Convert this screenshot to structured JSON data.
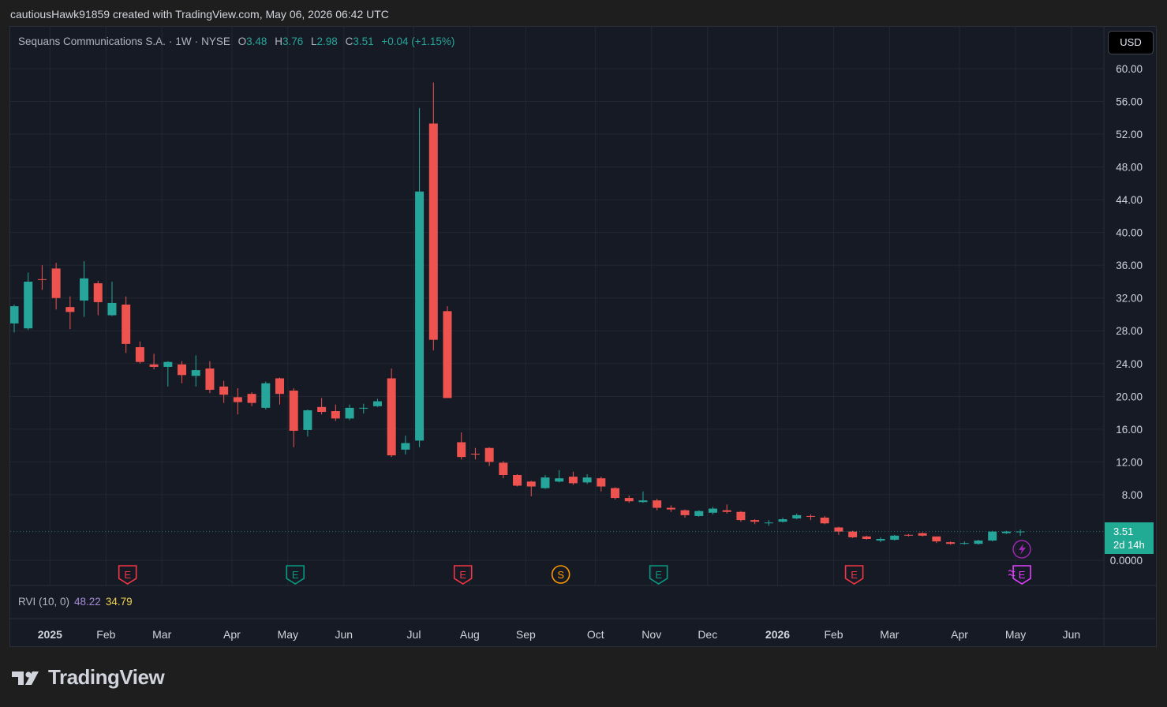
{
  "caption": "cautiousHawk91859 created with TradingView.com, May 06, 2026 06:42 UTC",
  "legend": {
    "name": "Sequans Communications S.A.",
    "interval": "1W",
    "exchange": "NYSE",
    "o_label": "O",
    "o_value": "3.48",
    "h_label": "H",
    "h_value": "3.76",
    "l_label": "L",
    "l_value": "2.98",
    "c_label": "C",
    "c_value": "3.51",
    "change": "+0.04 (+1.15%)"
  },
  "currency_button": "USD",
  "price_tag": {
    "price": "3.51",
    "countdown": "2d 14h"
  },
  "indicator": {
    "name": "RVI (10, 0)",
    "value1": "48.22",
    "value2": "34.79"
  },
  "brand": "TradingView",
  "colors": {
    "up": "#26a69a",
    "down": "#ef5350",
    "background": "#161a25",
    "grid": "#232733",
    "event_earnings_red": "#f23645",
    "event_earnings_green": "#089981",
    "event_split": "#ff9800",
    "event_future": "#e040fb"
  },
  "chart_data": {
    "type": "candlestick",
    "title": "Sequans Communications S.A. · 1W · NYSE",
    "y_axis": {
      "ticks": [
        "60.00",
        "56.00",
        "52.00",
        "48.00",
        "44.00",
        "40.00",
        "36.00",
        "32.00",
        "28.00",
        "24.00",
        "20.00",
        "16.00",
        "12.00",
        "8.00",
        "0.0000"
      ],
      "ylim": [
        0,
        60
      ]
    },
    "x_axis": {
      "ticks": [
        {
          "label": "2025",
          "bold": true
        },
        {
          "label": "Feb"
        },
        {
          "label": "Mar"
        },
        {
          "label": "Apr"
        },
        {
          "label": "May"
        },
        {
          "label": "Jun"
        },
        {
          "label": "Jul"
        },
        {
          "label": "Aug"
        },
        {
          "label": "Sep"
        },
        {
          "label": "Oct"
        },
        {
          "label": "Nov"
        },
        {
          "label": "Dec"
        },
        {
          "label": "2026",
          "bold": true
        },
        {
          "label": "Feb"
        },
        {
          "label": "Mar"
        },
        {
          "label": "Apr"
        },
        {
          "label": "May"
        },
        {
          "label": "Jun"
        }
      ]
    },
    "candles": [
      {
        "o": 28.9,
        "h": 31.2,
        "l": 27.8,
        "c": 31.0
      },
      {
        "o": 28.3,
        "h": 35.1,
        "l": 28.1,
        "c": 34.0
      },
      {
        "o": 34.3,
        "h": 36.0,
        "l": 33.0,
        "c": 34.2
      },
      {
        "o": 35.6,
        "h": 36.3,
        "l": 30.6,
        "c": 32.0
      },
      {
        "o": 30.9,
        "h": 32.2,
        "l": 28.2,
        "c": 30.3
      },
      {
        "o": 31.7,
        "h": 36.5,
        "l": 29.7,
        "c": 34.4
      },
      {
        "o": 33.8,
        "h": 34.1,
        "l": 29.9,
        "c": 31.5
      },
      {
        "o": 29.9,
        "h": 34.0,
        "l": 29.8,
        "c": 31.4
      },
      {
        "o": 31.2,
        "h": 32.2,
        "l": 25.3,
        "c": 26.4
      },
      {
        "o": 26.0,
        "h": 26.7,
        "l": 24.0,
        "c": 24.2
      },
      {
        "o": 23.9,
        "h": 25.2,
        "l": 23.3,
        "c": 23.6
      },
      {
        "o": 23.6,
        "h": 24.3,
        "l": 21.2,
        "c": 24.2
      },
      {
        "o": 23.9,
        "h": 24.3,
        "l": 21.6,
        "c": 22.6
      },
      {
        "o": 22.5,
        "h": 25.0,
        "l": 21.2,
        "c": 23.2
      },
      {
        "o": 23.4,
        "h": 24.3,
        "l": 20.4,
        "c": 20.8
      },
      {
        "o": 21.2,
        "h": 21.9,
        "l": 19.2,
        "c": 20.2
      },
      {
        "o": 19.9,
        "h": 21.0,
        "l": 17.8,
        "c": 19.3
      },
      {
        "o": 20.3,
        "h": 20.5,
        "l": 18.8,
        "c": 19.2
      },
      {
        "o": 18.6,
        "h": 21.8,
        "l": 18.4,
        "c": 21.6
      },
      {
        "o": 22.2,
        "h": 22.3,
        "l": 19.0,
        "c": 20.3
      },
      {
        "o": 20.7,
        "h": 21.0,
        "l": 13.8,
        "c": 15.8
      },
      {
        "o": 15.9,
        "h": 18.4,
        "l": 15.1,
        "c": 18.3
      },
      {
        "o": 18.7,
        "h": 19.8,
        "l": 17.8,
        "c": 18.1
      },
      {
        "o": 18.2,
        "h": 19.0,
        "l": 17.0,
        "c": 17.3
      },
      {
        "o": 17.3,
        "h": 19.0,
        "l": 17.1,
        "c": 18.6
      },
      {
        "o": 18.6,
        "h": 19.1,
        "l": 17.9,
        "c": 18.6
      },
      {
        "o": 18.8,
        "h": 19.7,
        "l": 18.7,
        "c": 19.4
      },
      {
        "o": 22.2,
        "h": 23.4,
        "l": 12.6,
        "c": 12.8
      },
      {
        "o": 13.5,
        "h": 15.2,
        "l": 12.9,
        "c": 14.3
      },
      {
        "o": 14.6,
        "h": 55.2,
        "l": 13.8,
        "c": 45.0
      },
      {
        "o": 53.3,
        "h": 58.3,
        "l": 25.6,
        "c": 26.9
      },
      {
        "o": 30.4,
        "h": 31.0,
        "l": 19.8,
        "c": 19.8
      },
      {
        "o": 14.4,
        "h": 15.6,
        "l": 12.3,
        "c": 12.6
      },
      {
        "o": 13.0,
        "h": 13.7,
        "l": 12.3,
        "c": 12.9
      },
      {
        "o": 13.7,
        "h": 13.8,
        "l": 11.5,
        "c": 12.0
      },
      {
        "o": 11.9,
        "h": 12.1,
        "l": 10.0,
        "c": 10.4
      },
      {
        "o": 10.4,
        "h": 10.5,
        "l": 9.0,
        "c": 9.1
      },
      {
        "o": 9.6,
        "h": 9.7,
        "l": 7.8,
        "c": 9.0
      },
      {
        "o": 8.8,
        "h": 10.4,
        "l": 8.7,
        "c": 10.1
      },
      {
        "o": 9.6,
        "h": 11.0,
        "l": 9.5,
        "c": 10.0
      },
      {
        "o": 10.2,
        "h": 10.8,
        "l": 9.2,
        "c": 9.4
      },
      {
        "o": 9.5,
        "h": 10.5,
        "l": 9.3,
        "c": 10.1
      },
      {
        "o": 10.0,
        "h": 10.2,
        "l": 8.4,
        "c": 9.0
      },
      {
        "o": 8.8,
        "h": 8.9,
        "l": 7.4,
        "c": 7.6
      },
      {
        "o": 7.6,
        "h": 7.9,
        "l": 7.0,
        "c": 7.2
      },
      {
        "o": 7.1,
        "h": 8.4,
        "l": 7.0,
        "c": 7.3
      },
      {
        "o": 7.3,
        "h": 7.5,
        "l": 6.1,
        "c": 6.4
      },
      {
        "o": 6.4,
        "h": 6.7,
        "l": 5.9,
        "c": 6.2
      },
      {
        "o": 6.1,
        "h": 6.2,
        "l": 5.2,
        "c": 5.5
      },
      {
        "o": 5.4,
        "h": 6.1,
        "l": 5.3,
        "c": 6.0
      },
      {
        "o": 5.8,
        "h": 6.5,
        "l": 5.6,
        "c": 6.3
      },
      {
        "o": 6.1,
        "h": 6.8,
        "l": 5.7,
        "c": 5.9
      },
      {
        "o": 5.9,
        "h": 6.0,
        "l": 4.7,
        "c": 4.9
      },
      {
        "o": 4.9,
        "h": 5.0,
        "l": 4.4,
        "c": 4.7
      },
      {
        "o": 4.6,
        "h": 4.9,
        "l": 4.2,
        "c": 4.6
      },
      {
        "o": 4.7,
        "h": 5.2,
        "l": 4.6,
        "c": 5.0
      },
      {
        "o": 5.1,
        "h": 5.7,
        "l": 5.0,
        "c": 5.5
      },
      {
        "o": 5.4,
        "h": 5.6,
        "l": 4.9,
        "c": 5.3
      },
      {
        "o": 5.2,
        "h": 5.4,
        "l": 4.4,
        "c": 4.5
      },
      {
        "o": 4.0,
        "h": 4.1,
        "l": 3.1,
        "c": 3.5
      },
      {
        "o": 3.5,
        "h": 3.6,
        "l": 2.7,
        "c": 2.8
      },
      {
        "o": 2.9,
        "h": 3.0,
        "l": 2.5,
        "c": 2.6
      },
      {
        "o": 2.4,
        "h": 2.8,
        "l": 2.2,
        "c": 2.6
      },
      {
        "o": 2.5,
        "h": 3.1,
        "l": 2.4,
        "c": 3.0
      },
      {
        "o": 3.1,
        "h": 3.2,
        "l": 2.9,
        "c": 3.0
      },
      {
        "o": 3.3,
        "h": 3.4,
        "l": 2.9,
        "c": 3.0
      },
      {
        "o": 2.9,
        "h": 2.9,
        "l": 2.1,
        "c": 2.3
      },
      {
        "o": 2.2,
        "h": 2.3,
        "l": 1.9,
        "c": 2.0
      },
      {
        "o": 2.0,
        "h": 2.3,
        "l": 1.9,
        "c": 2.1
      },
      {
        "o": 2.0,
        "h": 2.5,
        "l": 1.9,
        "c": 2.4
      },
      {
        "o": 2.4,
        "h": 3.6,
        "l": 2.3,
        "c": 3.5
      },
      {
        "o": 3.3,
        "h": 3.6,
        "l": 3.2,
        "c": 3.5
      },
      {
        "o": 3.48,
        "h": 3.76,
        "l": 2.98,
        "c": 3.51
      }
    ],
    "events": [
      {
        "type": "E",
        "style": "earnings-red",
        "candle": 8
      },
      {
        "type": "E",
        "style": "earnings-green",
        "candle": 20
      },
      {
        "type": "E",
        "style": "earnings-red",
        "candle": 32
      },
      {
        "type": "S",
        "style": "split",
        "candle": 39
      },
      {
        "type": "E",
        "style": "earnings-green",
        "candle": 46
      },
      {
        "type": "E",
        "style": "earnings-red",
        "candle": 60
      },
      {
        "type": "E",
        "style": "future",
        "candle": 72
      }
    ],
    "grid": true,
    "last_price": 3.51
  }
}
